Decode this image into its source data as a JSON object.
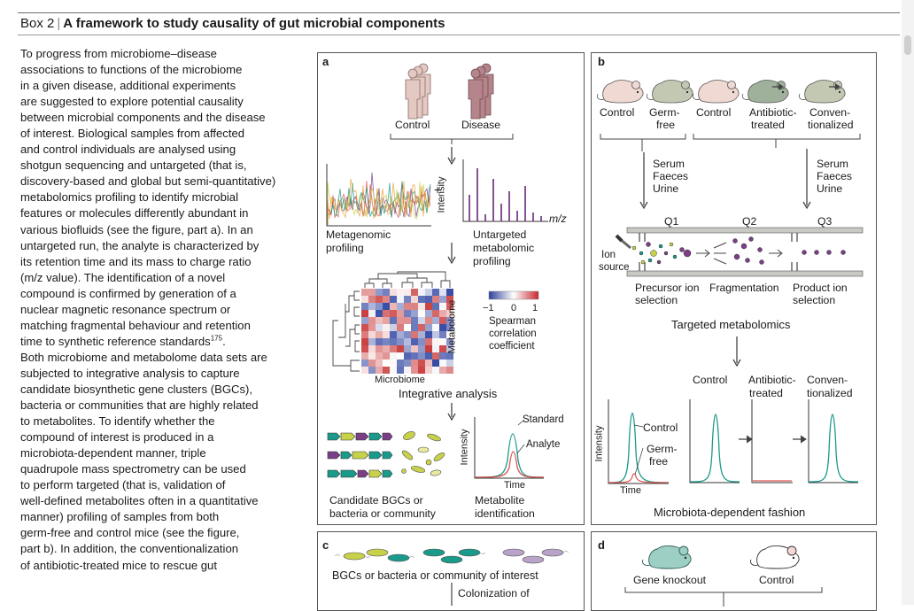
{
  "header": {
    "box_number": "Box 2",
    "separator": "|",
    "title": "A framework to study causality of gut microbial components"
  },
  "body_lines": [
    "To progress from microbiome–disease",
    "associations to functions of the microbiome",
    "in a given disease, additional experiments",
    "are suggested to explore potential causality",
    "between microbial components and the disease",
    "of interest. Biological samples from affected",
    "and control individuals are analysed using",
    "shotgun sequencing and untargeted (that is,",
    "discovery-based and global but semi-quantitative)",
    "metabolomics profiling to identify microbial",
    "features or molecules differently abundant in",
    "various biofluids (see the figure, part a). In an",
    "untargeted run, the analyte is characterized by",
    "its retention time and its mass to charge ratio",
    "(m/z value). The identification of a novel",
    "compound is confirmed by generation of a",
    "nuclear magnetic resonance spectrum or",
    "matching fragmental behaviour and retention",
    "time to synthetic reference standards",
    "Both microbiome and metabolome data sets are",
    "subjected to integrative analysis to capture",
    "candidate biosynthetic gene clusters (BGCs),",
    "bacteria or communities that are highly related",
    "to metabolites. To identify whether the",
    "compound of interest is produced in a",
    "microbiota-dependent manner, triple",
    "quadrupole mass spectrometry can be used",
    "to perform targeted (that is, validation of",
    "well-defined metabolites often in a quantitative",
    "manner) profiling of samples from both",
    "germ-free and control mice (see the figure,",
    "part b). In addition, the conventionalization",
    "of antibiotic-treated mice to rescue gut"
  ],
  "reference_superscript": "175",
  "reference_period": ".",
  "panel_a": {
    "letter": "a",
    "control": "Control",
    "disease": "Disease",
    "plus": "+",
    "intensity": "Intensity",
    "mz": "m/z",
    "metagenomic_1": "Metagenomic",
    "metagenomic_2": "profiling",
    "untargeted_1": "Untargeted",
    "untargeted_2": "metabolomic",
    "untargeted_3": "profiling",
    "metabolome": "Metabolome",
    "microbiome": "Microbiome",
    "scale_min": "−1",
    "scale_mid": "0",
    "scale_max": "1",
    "spearman_1": "Spearman",
    "spearman_2": "correlation",
    "spearman_3": "coefficient",
    "integrative": "Integrative analysis",
    "standard": "Standard",
    "analyte": "Analyte",
    "time": "Time",
    "intensity2": "Intensity",
    "candidate_1": "Candidate BGCs or",
    "candidate_2": "bacteria or community",
    "metid_1": "Metabolite",
    "metid_2": "identification"
  },
  "panel_b": {
    "letter": "b",
    "control_1": "Control",
    "germ_1": "Germ-",
    "germ_2": "free",
    "control_2": "Control",
    "abx_1": "Antibiotic-",
    "abx_2": "treated",
    "conv_1": "Conven-",
    "conv_2": "tionalized",
    "samples_left": [
      "Serum",
      "Faeces",
      "Urine"
    ],
    "samples_right": [
      "Serum",
      "Faeces",
      "Urine"
    ],
    "q1": "Q1",
    "q2": "Q2",
    "q3": "Q3",
    "ion_1": "Ion",
    "ion_2": "source",
    "precursor_1": "Precursor ion",
    "precursor_2": "selection",
    "fragmentation": "Fragmentation",
    "product_1": "Product ion",
    "product_2": "selection",
    "targeted": "Targeted metabolomics",
    "ctl_small": "Control",
    "abx_small_1": "Antibiotic-",
    "abx_small_2": "treated",
    "conv_small_1": "Conven-",
    "conv_small_2": "tionalized",
    "leg_control": "Control",
    "leg_germ_1": "Germ-",
    "leg_germ_2": "free",
    "intensity": "Intensity",
    "time": "Time",
    "footer": "Microbiota-dependent fashion"
  },
  "panel_c": {
    "letter": "c",
    "caption": "BGCs or bacteria or community of interest",
    "colonization": "Colonization of"
  },
  "panel_d": {
    "letter": "d",
    "knockout": "Gene knockout",
    "control": "Control"
  },
  "colors": {
    "teal": "#1a9a8a",
    "red": "#d9534f",
    "purple": "#7a3f86",
    "mouse_pink": "#efd9d2",
    "mouse_grey": "#c3c8b2",
    "mouse_green": "#9fb19a",
    "person_light": "#e4c8c2",
    "person_dark": "#b6848b"
  }
}
